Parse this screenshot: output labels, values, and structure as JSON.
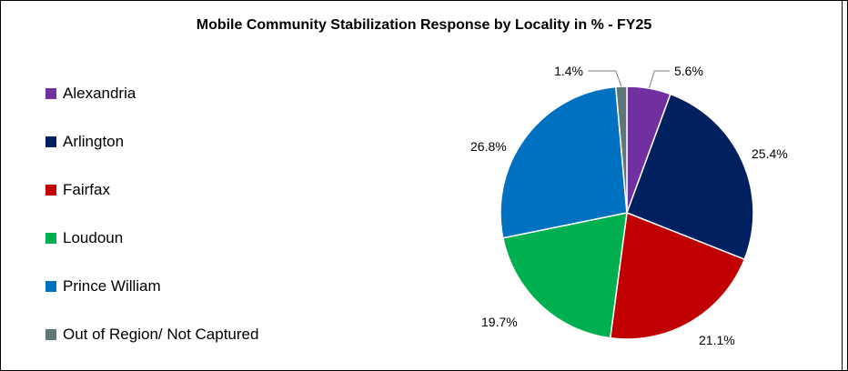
{
  "chart_data": {
    "type": "pie",
    "title": "Mobile Community Stabilization Response by Locality in % - FY25",
    "legend_position": "left",
    "series": [
      {
        "name": "Alexandria",
        "value": 5.6,
        "label": "5.6%",
        "color": "#7030A0"
      },
      {
        "name": "Arlington",
        "value": 25.4,
        "label": "25.4%",
        "color": "#002060"
      },
      {
        "name": "Fairfax",
        "value": 21.1,
        "label": "21.1%",
        "color": "#C00000"
      },
      {
        "name": "Loudoun",
        "value": 19.7,
        "label": "19.7%",
        "color": "#00B050"
      },
      {
        "name": "Prince William",
        "value": 26.8,
        "label": "26.8%",
        "color": "#0070C0"
      },
      {
        "name": "Out of Region/ Not Captured",
        "value": 1.4,
        "label": "1.4%",
        "color": "#5F7676"
      }
    ]
  }
}
